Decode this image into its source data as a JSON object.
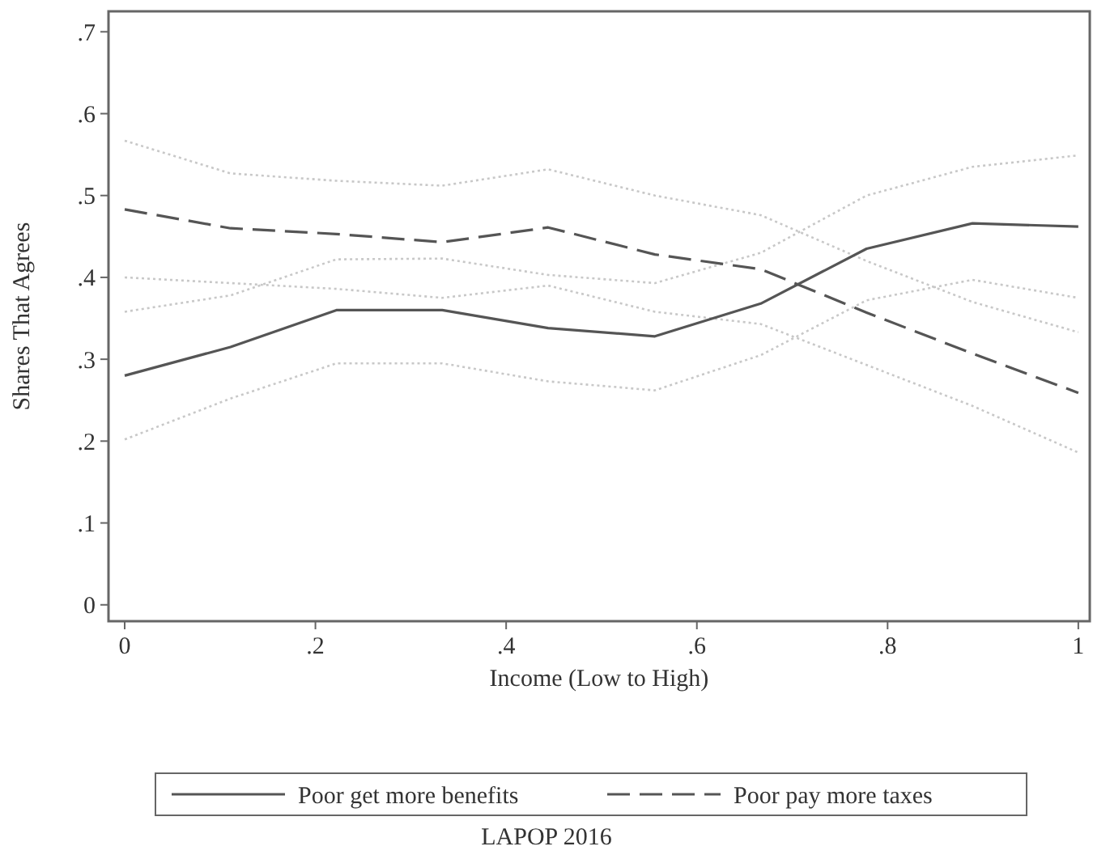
{
  "chart_data": {
    "type": "line",
    "xlabel": "Income (Low to High)",
    "ylabel": "Shares That Agrees",
    "x": [
      0,
      0.111,
      0.222,
      0.333,
      0.444,
      0.556,
      0.667,
      0.778,
      0.889,
      1
    ],
    "series": [
      {
        "name": "Poor get more benefits",
        "color": "#555555",
        "line_style": "solid",
        "values": [
          0.28,
          0.315,
          0.36,
          0.36,
          0.338,
          0.328,
          0.368,
          0.435,
          0.466,
          0.462
        ]
      },
      {
        "name": "Poor pay more taxes",
        "color": "#555555",
        "line_style": "dashed",
        "values": [
          0.483,
          0.46,
          0.453,
          0.443,
          0.461,
          0.428,
          0.41,
          0.357,
          0.307,
          0.259
        ]
      },
      {
        "color": "#c8c8c8",
        "line_style": "dotted",
        "values": [
          0.202,
          0.252,
          0.295,
          0.295,
          0.273,
          0.262,
          0.305,
          0.372,
          0.397,
          0.375
        ]
      },
      {
        "color": "#c8c8c8",
        "line_style": "dotted",
        "values": [
          0.358,
          0.378,
          0.422,
          0.423,
          0.403,
          0.393,
          0.43,
          0.5,
          0.535,
          0.549
        ]
      },
      {
        "color": "#c8c8c8",
        "line_style": "dotted",
        "values": [
          0.4,
          0.393,
          0.386,
          0.375,
          0.39,
          0.358,
          0.343,
          0.293,
          0.243,
          0.186
        ]
      },
      {
        "color": "#c8c8c8",
        "line_style": "dotted",
        "values": [
          0.567,
          0.527,
          0.518,
          0.512,
          0.532,
          0.5,
          0.476,
          0.42,
          0.37,
          0.333
        ]
      }
    ],
    "xlim": [
      -0.017,
      1.012
    ],
    "ylim": [
      -0.02,
      0.725
    ],
    "xticks": [
      0,
      {
        "value": 0.2,
        "label": ".2"
      },
      {
        "value": 0.4,
        "label": ".4"
      },
      {
        "value": 0.6,
        "label": ".6"
      },
      {
        "value": 0.8,
        "label": ".8"
      },
      1
    ],
    "yticks": [
      0,
      {
        "value": 0.1,
        "label": ".1"
      },
      {
        "value": 0.2,
        "label": ".2"
      },
      {
        "value": 0.3,
        "label": ".3"
      },
      {
        "value": 0.4,
        "label": ".4"
      },
      {
        "value": 0.5,
        "label": ".5"
      },
      {
        "value": 0.6,
        "label": ".6"
      },
      {
        "value": 0.7,
        "label": ".7"
      }
    ],
    "legend": "bottom",
    "marker": "none",
    "grid": false,
    "annotations": [
      "LAPOP 2016"
    ]
  }
}
